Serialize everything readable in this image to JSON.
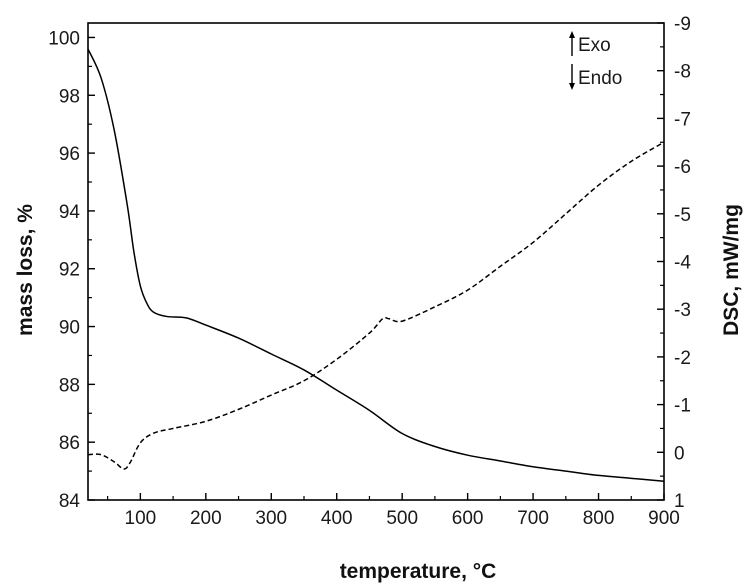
{
  "chart_data": {
    "type": "line",
    "title": "",
    "xlabel": "temperature, °C",
    "ylabel": "mass loss, %",
    "y2label": "DSC, mW/mg",
    "xlim": [
      20,
      900
    ],
    "ylim": [
      84,
      100.5
    ],
    "y2lim": [
      1,
      -9
    ],
    "y2_inverted": true,
    "x_ticks": [
      100,
      200,
      300,
      400,
      500,
      600,
      700,
      800,
      900
    ],
    "y_ticks": [
      84,
      86,
      88,
      90,
      92,
      94,
      96,
      98,
      100
    ],
    "y2_ticks": [
      1,
      0,
      -1,
      -2,
      -3,
      -4,
      -5,
      -6,
      -7,
      -8,
      -9
    ],
    "grid": false,
    "legend": {
      "exo_label": "Exo",
      "endo_label": "Endo",
      "placement": "top-right"
    },
    "series": [
      {
        "axis": "left",
        "style": "solid",
        "color": "#000000",
        "x": [
          20,
          40,
          60,
          80,
          90,
          100,
          110,
          120,
          140,
          170,
          200,
          250,
          300,
          350,
          400,
          450,
          500,
          550,
          600,
          650,
          700,
          750,
          800,
          850,
          900
        ],
        "y": [
          99.6,
          98.6,
          96.8,
          94.2,
          92.6,
          91.4,
          90.8,
          90.5,
          90.35,
          90.3,
          90.05,
          89.6,
          89.05,
          88.5,
          87.8,
          87.1,
          86.3,
          85.85,
          85.55,
          85.35,
          85.15,
          85.0,
          84.85,
          84.75,
          84.65
        ]
      },
      {
        "axis": "right",
        "style": "dashed",
        "color": "#000000",
        "x": [
          20,
          40,
          60,
          75,
          85,
          100,
          120,
          150,
          200,
          250,
          300,
          350,
          400,
          450,
          470,
          480,
          500,
          550,
          600,
          650,
          700,
          750,
          800,
          850,
          900
        ],
        "y": [
          0.05,
          0.05,
          0.2,
          0.35,
          0.2,
          -0.2,
          -0.4,
          -0.5,
          -0.65,
          -0.9,
          -1.2,
          -1.5,
          -1.95,
          -2.5,
          -2.8,
          -2.8,
          -2.75,
          -3.05,
          -3.4,
          -3.9,
          -4.4,
          -5.0,
          -5.6,
          -6.1,
          -6.5
        ]
      }
    ]
  }
}
